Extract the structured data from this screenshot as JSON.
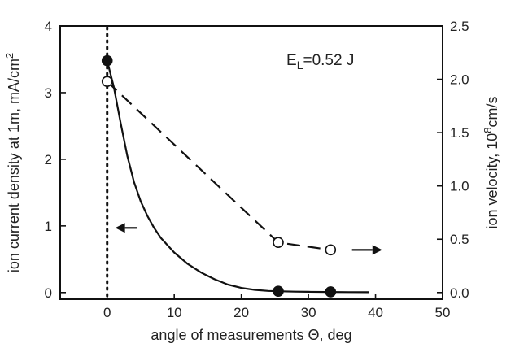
{
  "chart_data": {
    "type": "line",
    "title": "",
    "xlabel": "angle of measurements Θ, deg",
    "xlim": [
      -7,
      50
    ],
    "x_ticks": [
      0,
      10,
      20,
      30,
      40,
      50
    ],
    "x_tick_labels": [
      "0",
      "10",
      "20",
      "30",
      "40",
      "50"
    ],
    "y_left": {
      "label_prefix": "ion current density at 1m, mA/cm",
      "label_superscript": "2",
      "lim": [
        -0.1,
        4
      ],
      "ticks": [
        0,
        1,
        2,
        3,
        4
      ],
      "tick_labels": [
        "0",
        "1",
        "2",
        "3",
        "4"
      ]
    },
    "y_right": {
      "label_prefix": "ion velocity, 10",
      "label_superscript": "8",
      "label_suffix": "cm/s",
      "lim": [
        -0.0625,
        2.5
      ],
      "ticks": [
        0.0,
        0.5,
        1.0,
        1.5,
        2.0,
        2.5
      ],
      "tick_labels": [
        "0.0",
        "0.5",
        "1.0",
        "1.5",
        "2.0",
        "2.5"
      ]
    },
    "series": [
      {
        "axis": "left",
        "style": "solid",
        "marker": "filled-circle",
        "color": "#111111",
        "points": [
          {
            "x": 0,
            "y": 3.48
          },
          {
            "x": 25.5,
            "y": 0.02
          },
          {
            "x": 33.3,
            "y": 0.01
          }
        ],
        "fit_curve": {
          "x": [
            0,
            1,
            2,
            3,
            4,
            5,
            6,
            7,
            8,
            10,
            12,
            14,
            16,
            18,
            20,
            22,
            24,
            26,
            28,
            30,
            33,
            36,
            39
          ],
          "y": [
            3.48,
            3.08,
            2.55,
            2.05,
            1.66,
            1.37,
            1.15,
            0.97,
            0.82,
            0.6,
            0.43,
            0.3,
            0.2,
            0.12,
            0.07,
            0.04,
            0.025,
            0.018,
            0.014,
            0.011,
            0.008,
            0.006,
            0.005
          ]
        }
      },
      {
        "axis": "right",
        "style": "dashed",
        "marker": "open-circle",
        "color": "#111111",
        "points": [
          {
            "x": 0,
            "y": 1.98
          },
          {
            "x": 25.5,
            "y": 0.47
          },
          {
            "x": 33.3,
            "y": 0.4
          }
        ]
      }
    ],
    "reference_line": {
      "x": 0,
      "style": "dotted"
    },
    "annotation": {
      "main": "E",
      "subscript": "L",
      "rest": "=0.52 J"
    },
    "arrows": [
      {
        "series_axis": "left",
        "direction": "left",
        "from": {
          "x": 4.5,
          "y": 0.97
        },
        "to": {
          "x": 1.2,
          "y": 0.97
        }
      },
      {
        "series_axis": "right",
        "direction": "right",
        "from": {
          "x": 36.5,
          "y": 0.4
        },
        "to": {
          "x": 41,
          "y": 0.4
        }
      }
    ],
    "grid": false,
    "legend": "none"
  }
}
